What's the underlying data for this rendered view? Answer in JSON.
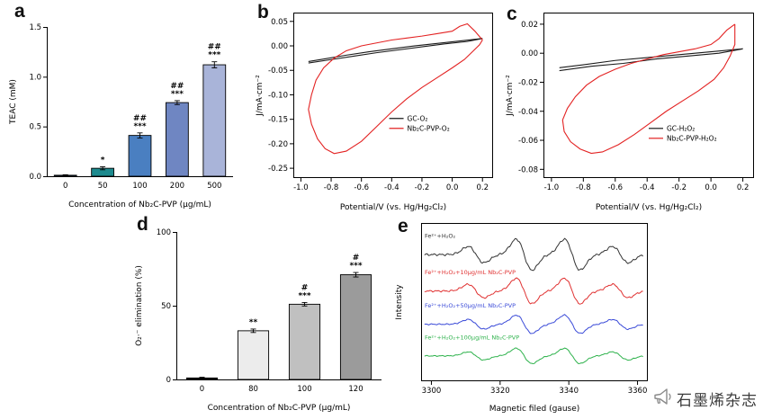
{
  "watermark": {
    "text": "石墨烯杂志",
    "icon": "megaphone-icon",
    "color": "#888888"
  },
  "chart_data": [
    {
      "id": "a",
      "panel_label": "a",
      "type": "bar",
      "categories": [
        "0",
        "50",
        "100",
        "200",
        "500"
      ],
      "values": [
        0.01,
        0.08,
        0.41,
        0.74,
        1.12
      ],
      "errors": [
        0.005,
        0.015,
        0.025,
        0.02,
        0.03
      ],
      "bar_colors": [
        "#123a5e",
        "#1d8a8e",
        "#4a7fc1",
        "#6f86c2",
        "#a9b4d9"
      ],
      "annotations": [
        [],
        [
          "*"
        ],
        [
          "##",
          "***"
        ],
        [
          "##",
          "***"
        ],
        [
          "##",
          "***"
        ]
      ],
      "xlabel": "Concentration of Nb₂C-PVP (μg/mL)",
      "ylabel": "TEAC (mM)",
      "ylim": [
        0,
        1.5
      ],
      "yticks": [
        0.0,
        0.5,
        1.0,
        1.5
      ],
      "ytick_decimals": 1
    },
    {
      "id": "b",
      "panel_label": "b",
      "type": "cv",
      "xlabel": "Potential/V (vs. Hg/Hg₂Cl₂)",
      "ylabel": "J/mA·cm⁻²",
      "xlim": [
        -1.05,
        0.27
      ],
      "ylim": [
        -0.27,
        0.068
      ],
      "xticks": [
        -1.0,
        -0.8,
        -0.6,
        -0.4,
        -0.2,
        0.0,
        0.2
      ],
      "xtick_decimals": 1,
      "yticks": [
        0.05,
        0.0,
        -0.05,
        -0.1,
        -0.15,
        -0.2,
        -0.25
      ],
      "ytick_decimals": 2,
      "legend_pos": [
        0.48,
        0.64
      ],
      "series": [
        {
          "name": "GC-O₂",
          "color": "#1a1a1a",
          "points": [
            [
              -0.95,
              -0.032
            ],
            [
              -0.85,
              -0.027
            ],
            [
              -0.7,
              -0.019
            ],
            [
              -0.55,
              -0.012
            ],
            [
              -0.4,
              -0.006
            ],
            [
              -0.25,
              0.0
            ],
            [
              -0.1,
              0.005
            ],
            [
              0.05,
              0.01
            ],
            [
              0.2,
              0.015
            ],
            [
              0.1,
              0.009
            ],
            [
              -0.05,
              0.004
            ],
            [
              -0.2,
              -0.002
            ],
            [
              -0.35,
              -0.008
            ],
            [
              -0.5,
              -0.014
            ],
            [
              -0.65,
              -0.021
            ],
            [
              -0.8,
              -0.028
            ],
            [
              -0.95,
              -0.035
            ]
          ]
        },
        {
          "name": "Nb₂C-PVP-O₂",
          "color": "#e32222",
          "points": [
            [
              0.2,
              0.012
            ],
            [
              0.15,
              0.03
            ],
            [
              0.1,
              0.045
            ],
            [
              0.05,
              0.04
            ],
            [
              0.0,
              0.03
            ],
            [
              -0.1,
              0.025
            ],
            [
              -0.2,
              0.02
            ],
            [
              -0.3,
              0.016
            ],
            [
              -0.4,
              0.012
            ],
            [
              -0.5,
              0.006
            ],
            [
              -0.6,
              0.0
            ],
            [
              -0.7,
              -0.01
            ],
            [
              -0.78,
              -0.025
            ],
            [
              -0.85,
              -0.045
            ],
            [
              -0.9,
              -0.07
            ],
            [
              -0.93,
              -0.1
            ],
            [
              -0.95,
              -0.13
            ],
            [
              -0.93,
              -0.16
            ],
            [
              -0.89,
              -0.19
            ],
            [
              -0.84,
              -0.21
            ],
            [
              -0.78,
              -0.22
            ],
            [
              -0.7,
              -0.215
            ],
            [
              -0.6,
              -0.195
            ],
            [
              -0.5,
              -0.165
            ],
            [
              -0.4,
              -0.135
            ],
            [
              -0.3,
              -0.108
            ],
            [
              -0.2,
              -0.085
            ],
            [
              -0.1,
              -0.065
            ],
            [
              0.0,
              -0.045
            ],
            [
              0.08,
              -0.028
            ],
            [
              0.14,
              -0.01
            ],
            [
              0.18,
              0.002
            ],
            [
              0.2,
              0.012
            ]
          ]
        }
      ]
    },
    {
      "id": "c",
      "panel_label": "c",
      "type": "cv",
      "xlabel": "Potential/V (vs. Hg/Hg₂Cl₂)",
      "ylabel": "J/mA·cm⁻²",
      "xlim": [
        -1.05,
        0.27
      ],
      "ylim": [
        -0.086,
        0.028
      ],
      "xticks": [
        -1.0,
        -0.8,
        -0.6,
        -0.4,
        -0.2,
        0.0,
        0.2
      ],
      "xtick_decimals": 1,
      "yticks": [
        0.02,
        0.0,
        -0.02,
        -0.04,
        -0.06,
        -0.08
      ],
      "ytick_decimals": 2,
      "legend_pos": [
        0.5,
        0.7
      ],
      "series": [
        {
          "name": "GC-H₂O₂",
          "color": "#1a1a1a",
          "points": [
            [
              -0.95,
              -0.01
            ],
            [
              -0.8,
              -0.008
            ],
            [
              -0.6,
              -0.005
            ],
            [
              -0.4,
              -0.003
            ],
            [
              -0.2,
              -0.001
            ],
            [
              0.0,
              0.001
            ],
            [
              0.2,
              0.003
            ],
            [
              0.05,
              0.0
            ],
            [
              -0.15,
              -0.002
            ],
            [
              -0.35,
              -0.004
            ],
            [
              -0.55,
              -0.007
            ],
            [
              -0.75,
              -0.009
            ],
            [
              -0.95,
              -0.012
            ]
          ]
        },
        {
          "name": "Nb₂C-PVP-H₂O₂",
          "color": "#e32222",
          "points": [
            [
              0.15,
              0.02
            ],
            [
              0.1,
              0.016
            ],
            [
              0.05,
              0.01
            ],
            [
              0.0,
              0.006
            ],
            [
              -0.1,
              0.003
            ],
            [
              -0.2,
              0.001
            ],
            [
              -0.3,
              -0.001
            ],
            [
              -0.4,
              -0.004
            ],
            [
              -0.5,
              -0.007
            ],
            [
              -0.6,
              -0.011
            ],
            [
              -0.7,
              -0.016
            ],
            [
              -0.78,
              -0.022
            ],
            [
              -0.85,
              -0.03
            ],
            [
              -0.9,
              -0.038
            ],
            [
              -0.93,
              -0.046
            ],
            [
              -0.92,
              -0.054
            ],
            [
              -0.88,
              -0.061
            ],
            [
              -0.82,
              -0.066
            ],
            [
              -0.75,
              -0.069
            ],
            [
              -0.68,
              -0.068
            ],
            [
              -0.58,
              -0.063
            ],
            [
              -0.48,
              -0.056
            ],
            [
              -0.38,
              -0.048
            ],
            [
              -0.28,
              -0.04
            ],
            [
              -0.18,
              -0.033
            ],
            [
              -0.08,
              -0.026
            ],
            [
              0.02,
              -0.018
            ],
            [
              0.08,
              -0.01
            ],
            [
              0.12,
              -0.002
            ],
            [
              0.15,
              0.006
            ],
            [
              0.15,
              0.02
            ]
          ]
        }
      ]
    },
    {
      "id": "d",
      "panel_label": "d",
      "type": "bar",
      "categories": [
        "0",
        "80",
        "100",
        "120"
      ],
      "values": [
        1,
        33,
        51,
        71
      ],
      "errors": [
        0.5,
        1.2,
        1.2,
        1.5
      ],
      "bar_colors": [
        "#1a1a1a",
        "#ececec",
        "#c0c0c0",
        "#9b9b9b"
      ],
      "annotations": [
        [],
        [
          "**"
        ],
        [
          "#",
          "***"
        ],
        [
          "#",
          "***"
        ]
      ],
      "xlabel": "Concentration of Nb₂C-PVP (μg/mL)",
      "ylabel": "O₂·⁻ elimination (%)",
      "ylim": [
        0,
        100
      ],
      "yticks": [
        0,
        50,
        100
      ],
      "ytick_decimals": 0
    },
    {
      "id": "e",
      "panel_label": "e",
      "type": "epr",
      "xlabel": "Magnetic filed (gause)",
      "ylabel": "Intensity",
      "xlim": [
        3297,
        3363
      ],
      "xticks": [
        3300,
        3320,
        3340,
        3360
      ],
      "xtick_decimals": 0,
      "peaks": {
        "centers": [
          3313,
          3327,
          3341,
          3355
        ],
        "rel_amps": [
          1,
          1.9,
          1.9,
          1
        ],
        "sigma": 2.3
      },
      "series": [
        {
          "label": "Fe²⁺+H₂O₂",
          "color": "#333333",
          "offset": 0.8,
          "amp": 0.085
        },
        {
          "label": "Fe²⁺+H₂O₂+10μg/mL Nb₂C-PVP",
          "color": "#e03131",
          "offset": 0.57,
          "amp": 0.07
        },
        {
          "label": "Fe²⁺+H₂O₂+50μg/mL Nb₂C-PVP",
          "color": "#3b4bd8",
          "offset": 0.36,
          "amp": 0.05
        },
        {
          "label": "Fe²⁺+H₂O₂+100μg/mL Nb₂C-PVP",
          "color": "#2eb24c",
          "offset": 0.16,
          "amp": 0.042
        }
      ]
    }
  ]
}
